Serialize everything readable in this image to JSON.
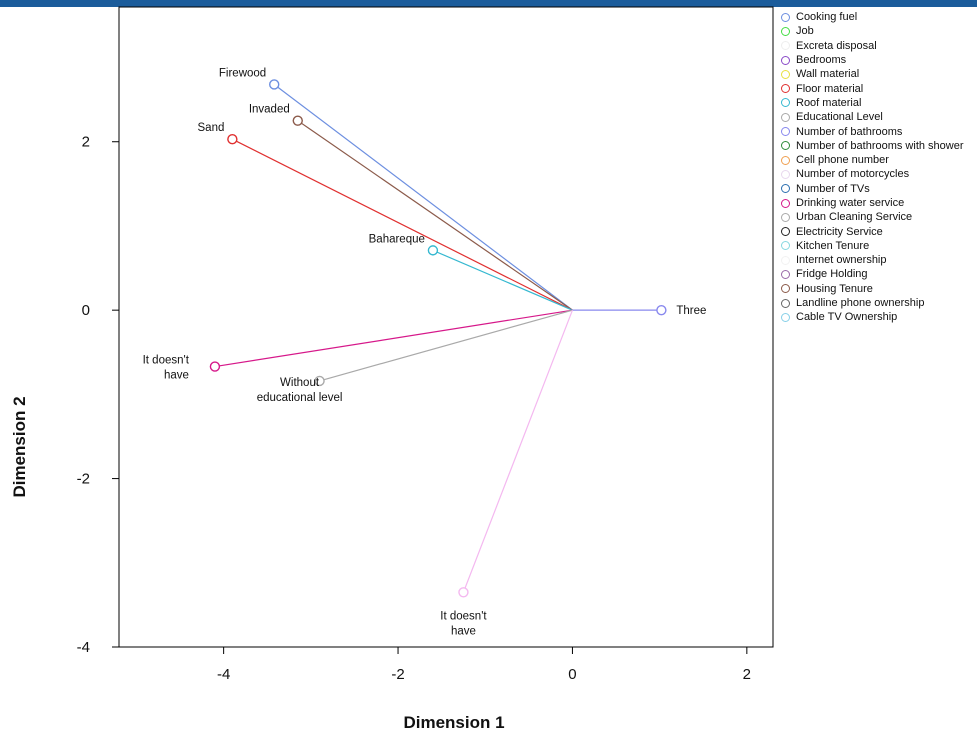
{
  "chart_data": {
    "type": "scatter",
    "title": "",
    "xlabel": "Dimension 1",
    "ylabel": "Dimension 2",
    "xlim": [
      -5.2,
      2.3
    ],
    "ylim": [
      -4,
      3.6
    ],
    "xticks": [
      -4,
      -2,
      0,
      2
    ],
    "yticks": [
      -4,
      -2,
      0,
      2
    ],
    "xtick_labels": [
      "-4",
      "-2",
      "0",
      "2"
    ],
    "ytick_labels": [
      "-4",
      "-2",
      "0",
      "2"
    ],
    "grid": false,
    "legend_position": "right",
    "origin": [
      0,
      0
    ],
    "points": [
      {
        "label": [
          "Firewood"
        ],
        "x": -3.42,
        "y": 2.68,
        "color": "#6d8fe0"
      },
      {
        "label": [
          "Invaded"
        ],
        "x": -3.15,
        "y": 2.25,
        "color": "#8b5a4a"
      },
      {
        "label": [
          "Sand"
        ],
        "x": -3.9,
        "y": 2.03,
        "color": "#e03030"
      },
      {
        "label": [
          "Bahareque"
        ],
        "x": -1.6,
        "y": 0.71,
        "color": "#35b8d0"
      },
      {
        "label": [
          "Three"
        ],
        "x": 1.02,
        "y": 0.0,
        "color": "#8888ee"
      },
      {
        "label": [
          "It doesn't",
          "have"
        ],
        "x": -4.1,
        "y": -0.67,
        "color": "#d6188a"
      },
      {
        "label": [
          "Without",
          "educational level"
        ],
        "x": -2.9,
        "y": -0.84,
        "color": "#a9a9a9"
      },
      {
        "label": [
          "It doesn't",
          "have"
        ],
        "x": -1.25,
        "y": -3.35,
        "color": "#f4b8f0"
      }
    ]
  },
  "legend": {
    "items": [
      {
        "label": "Cooking fuel",
        "color": "#6d8fe0"
      },
      {
        "label": "Job",
        "color": "#44dd44"
      },
      {
        "label": "Excreta disposal",
        "color": "#eeeeee"
      },
      {
        "label": "Bedrooms",
        "color": "#8a4ac8"
      },
      {
        "label": "Wall material",
        "color": "#e8e040"
      },
      {
        "label": "Floor material",
        "color": "#e03030"
      },
      {
        "label": "Roof material",
        "color": "#35b8d0"
      },
      {
        "label": "Educational Level",
        "color": "#a9a9a9"
      },
      {
        "label": "Number of bathrooms",
        "color": "#8888ee"
      },
      {
        "label": "Number of bathrooms with shower",
        "color": "#2e8b3a"
      },
      {
        "label": "Cell phone number",
        "color": "#f0a050"
      },
      {
        "label": "Number of motorcycles",
        "color": "#e8d8ee"
      },
      {
        "label": "Number of TVs",
        "color": "#2c6fb0"
      },
      {
        "label": "Drinking water service",
        "color": "#d6188a"
      },
      {
        "label": "Urban Cleaning Service",
        "color": "#aaaaaa"
      },
      {
        "label": "Electricity Service",
        "color": "#222222"
      },
      {
        "label": "Kitchen Tenure",
        "color": "#88d8e0"
      },
      {
        "label": "Internet ownership",
        "color": "#f2f2f2"
      },
      {
        "label": "Fridge Holding",
        "color": "#9a6aa8"
      },
      {
        "label": "Housing Tenure",
        "color": "#8b5a4a"
      },
      {
        "label": "Landline phone ownership",
        "color": "#666666"
      },
      {
        "label": "Cable TV Ownership",
        "color": "#88d0e8"
      }
    ]
  }
}
